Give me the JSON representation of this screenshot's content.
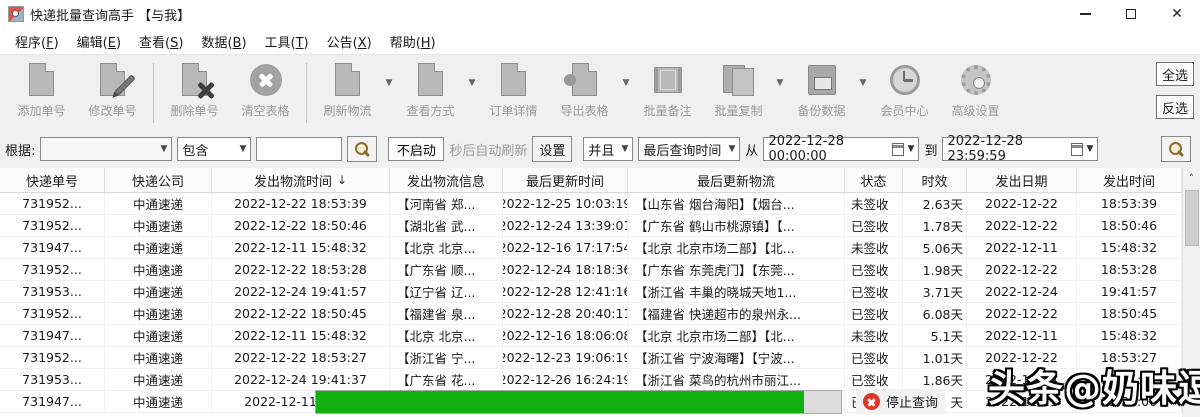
{
  "title_bar": {
    "title": "快递批量查询高手 【与我】"
  },
  "menu": {
    "items": [
      "程序(F)",
      "编辑(E)",
      "查看(S)",
      "数据(B)",
      "工具(T)",
      "公告(X)",
      "帮助(H)"
    ]
  },
  "toolbar": {
    "items": [
      {
        "label": "添加单号",
        "icon": "add-doc-icon"
      },
      {
        "label": "修改单号",
        "icon": "edit-doc-icon"
      },
      {
        "label": "删除单号",
        "icon": "delete-doc-icon"
      },
      {
        "label": "清空表格",
        "icon": "clear-table-icon"
      },
      {
        "label": "刷新物流",
        "icon": "refresh-doc-icon",
        "has_dropdown": true
      },
      {
        "label": "查看方式",
        "icon": "view-mode-icon",
        "has_dropdown": true
      },
      {
        "label": "订单详情",
        "icon": "order-detail-icon"
      },
      {
        "label": "导出表格",
        "icon": "export-table-icon",
        "has_dropdown": true
      },
      {
        "label": "批量备注",
        "icon": "batch-note-icon"
      },
      {
        "label": "批量复制",
        "icon": "batch-copy-icon",
        "has_dropdown": true
      },
      {
        "label": "备份数据",
        "icon": "backup-data-icon",
        "has_dropdown": true
      },
      {
        "label": "会员中心",
        "icon": "member-center-icon"
      },
      {
        "label": "高级设置",
        "icon": "advanced-settings-icon"
      }
    ],
    "select_all": "全选",
    "invert_select": "反选"
  },
  "filter": {
    "by_label": "根据:",
    "field_value": "",
    "contains_value": "包含",
    "keyword_value": "",
    "auto_refresh_value": "不启动",
    "auto_refresh_suffix": "秒后自动刷新",
    "settings_label": "设置",
    "and_value": "并且",
    "time_field_value": "最后查询时间",
    "from_label": "从",
    "from_value": "2022-12-28 00:00:00",
    "to_label": "到",
    "to_value": "2022-12-28 23:59:59"
  },
  "table": {
    "columns": [
      "快递单号",
      "快递公司",
      "发出物流时间",
      "发出物流信息",
      "最后更新时间",
      "最后更新物流",
      "状态",
      "时效",
      "发出日期",
      "发出时间"
    ],
    "sort_indicator": "↓",
    "rows": [
      [
        "731952...",
        "中通速递",
        "2022-12-22 18:53:39",
        "【河南省 郑...",
        "2022-12-25 10:03:19",
        "【山东省 烟台海阳】【烟台...",
        "未签收",
        "2.63天",
        "2022-12-22",
        "18:53:39"
      ],
      [
        "731952...",
        "中通速递",
        "2022-12-22 18:50:46",
        "【湖北省 武...",
        "2022-12-24 13:39:01",
        "【广东省 鹤山市桃源镇】【...",
        "已签收",
        "1.78天",
        "2022-12-22",
        "18:50:46"
      ],
      [
        "731947...",
        "中通速递",
        "2022-12-11 15:48:32",
        "【北京 北京...",
        "2022-12-16 17:17:54",
        "【北京 北京市场二部】【北...",
        "未签收",
        "5.06天",
        "2022-12-11",
        "15:48:32"
      ],
      [
        "731952...",
        "中通速递",
        "2022-12-22 18:53:28",
        "【广东省 顺...",
        "2022-12-24 18:18:36",
        "【广东省 东莞虎门】【东莞...",
        "已签收",
        "1.98天",
        "2022-12-22",
        "18:53:28"
      ],
      [
        "731953...",
        "中通速递",
        "2022-12-24 19:41:57",
        "【辽宁省 辽...",
        "2022-12-28 12:41:16",
        "【浙江省 丰巢的晓城天地1...",
        "已签收",
        "3.71天",
        "2022-12-24",
        "19:41:57"
      ],
      [
        "731952...",
        "中通速递",
        "2022-12-22 18:50:45",
        "【福建省 泉...",
        "2022-12-28 20:40:11",
        "【福建省 快递超市的泉州永...",
        "已签收",
        "6.08天",
        "2022-12-22",
        "18:50:45"
      ],
      [
        "731947...",
        "中通速递",
        "2022-12-11 15:48:32",
        "【北京 北京...",
        "2022-12-16 18:06:08",
        "【北京 北京市场二部】【北...",
        "未签收",
        "5.1天",
        "2022-12-11",
        "15:48:32"
      ],
      [
        "731952...",
        "中通速递",
        "2022-12-22 18:53:27",
        "【浙江省 宁...",
        "2022-12-23 19:06:19",
        "【浙江省 宁波海曙】【宁波...",
        "已签收",
        "1.01天",
        "2022-12-22",
        "18:53:27"
      ],
      [
        "731953...",
        "中通速递",
        "2022-12-24 19:41:37",
        "【广东省 花...",
        "2022-12-26 16:24:19",
        "【浙江省 菜鸟的杭州市丽江...",
        "已签收",
        "1.86天",
        "2022-12-24",
        "19:41:37"
      ],
      [
        "731947...",
        "中通速递",
        "2022-12-11 15:33",
        "",
        "",
        "",
        "已",
        "天",
        "2022-12-11",
        "15:33:00"
      ]
    ]
  },
  "overlay": {
    "progress_percent": 93,
    "stop_label": "停止查询"
  },
  "watermark": {
    "text": "头条@奶味逗"
  },
  "colors": {
    "progress_green": "#12b112",
    "stop_red": "#dd3526"
  }
}
